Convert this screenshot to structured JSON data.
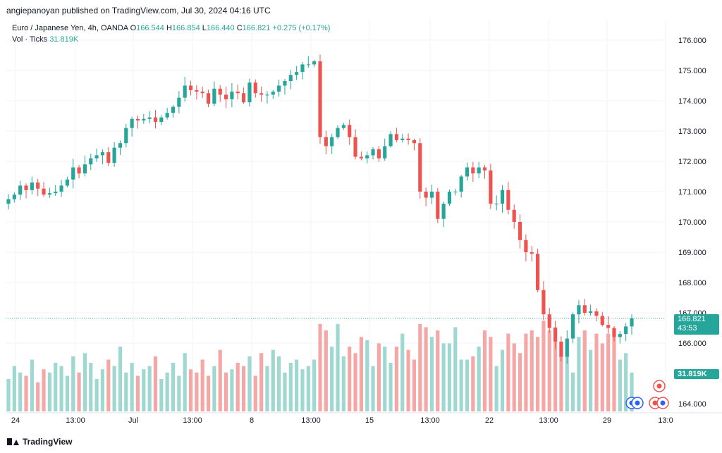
{
  "header": {
    "publisher": "angiepanoyan published on TradingView.com, Jul 30, 2024 04:16 UTC",
    "symbol": "Euro / Japanese Yen, 4h, OANDA",
    "open_label": "O",
    "open": "166.544",
    "high_label": "H",
    "high": "166.854",
    "low_label": "L",
    "low": "166.440",
    "close_label": "C",
    "close": "166.821",
    "change": "+0.275 (+0.17%)",
    "vol_label": "Vol · Ticks",
    "vol_value": "31.819K"
  },
  "price_badge": {
    "price": "166.821",
    "countdown": "43:53"
  },
  "vol_badge": "31.819K",
  "footer": {
    "brand": "TradingView"
  },
  "colors": {
    "up": "#26a69a",
    "down": "#ef5350",
    "up_vol": "#9fd7d1",
    "down_vol": "#f5a7a5",
    "grid": "#f0f3fa",
    "text": "#131722"
  },
  "chart_data": {
    "type": "candlestick",
    "title": "Euro / Japanese Yen, 4h, OANDA",
    "ylim": [
      163.75,
      176.5
    ],
    "y_ticks": [
      "176.000",
      "175.000",
      "174.000",
      "173.000",
      "172.000",
      "171.000",
      "170.000",
      "169.000",
      "168.000",
      "167.000",
      "166.000",
      "164.000"
    ],
    "x_ticks": [
      "24",
      "13:00",
      "Jul",
      "13:00",
      "8",
      "13:00",
      "15",
      "13:00",
      "22",
      "13:00",
      "29",
      "13:0"
    ],
    "last_price": 166.821,
    "close": [
      170.75,
      170.9,
      171.2,
      171.05,
      171.3,
      171.1,
      170.9,
      170.95,
      171.0,
      171.2,
      171.4,
      171.8,
      171.6,
      171.9,
      172.1,
      172.2,
      172.3,
      171.95,
      172.45,
      172.6,
      173.1,
      173.4,
      173.35,
      173.4,
      173.45,
      173.3,
      173.45,
      173.6,
      173.8,
      174.1,
      174.5,
      174.35,
      174.3,
      174.25,
      173.9,
      174.4,
      174.2,
      174.05,
      174.3,
      174.25,
      173.95,
      174.6,
      174.25,
      174.2,
      174.2,
      174.3,
      174.5,
      174.65,
      174.85,
      174.95,
      175.2,
      175.2,
      175.3,
      172.8,
      172.5,
      172.8,
      173.1,
      173.2,
      172.8,
      172.15,
      172.1,
      172.2,
      172.4,
      172.1,
      172.5,
      172.9,
      172.7,
      172.75,
      172.7,
      172.6,
      171.0,
      170.8,
      171.0,
      170.1,
      170.6,
      171.0,
      171.0,
      171.5,
      171.8,
      171.6,
      171.8,
      171.7,
      170.6,
      170.6,
      171.05,
      170.4,
      170.0,
      169.4,
      169.0,
      168.95,
      167.75,
      166.95,
      166.5,
      166.05,
      165.55,
      166.15,
      166.95,
      167.25,
      167.0,
      167.05,
      166.9,
      166.6,
      166.5,
      166.2,
      166.3,
      166.55,
      166.821
    ],
    "volume": [
      10,
      14,
      12,
      11,
      16,
      9,
      13,
      12,
      15,
      14,
      11,
      17,
      12,
      18,
      15,
      10,
      13,
      16,
      14,
      20,
      12,
      15,
      11,
      13,
      14,
      17,
      10,
      12,
      15,
      11,
      18,
      13,
      12,
      16,
      11,
      14,
      19,
      12,
      13,
      15,
      14,
      17,
      11,
      18,
      14,
      19,
      17,
      12,
      15,
      16,
      13,
      14,
      16,
      27,
      25,
      20,
      27,
      17,
      20,
      18,
      23,
      22,
      14,
      21,
      20,
      15,
      20,
      24,
      19,
      16,
      27,
      26,
      23,
      25,
      21,
      21,
      26,
      16,
      16,
      17,
      20,
      25,
      23,
      14,
      19,
      24,
      21,
      18,
      24,
      25,
      23,
      28,
      25,
      26,
      19,
      22,
      12,
      23,
      25,
      19,
      24,
      21,
      24,
      23,
      16,
      18,
      12
    ]
  }
}
